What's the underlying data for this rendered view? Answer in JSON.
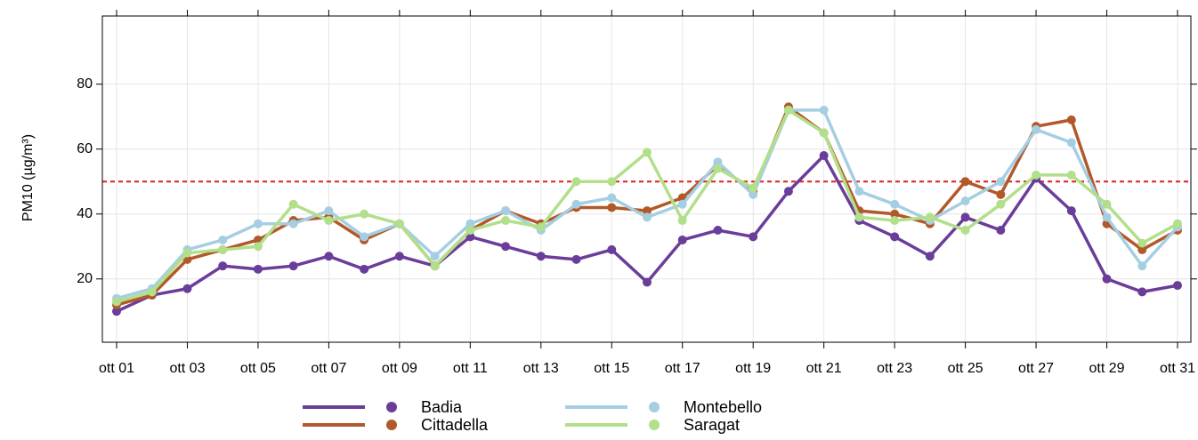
{
  "chart_data": {
    "type": "line",
    "y_label": "PM10 (µg/m³)",
    "categories": [
      "ott 01",
      null,
      "ott 03",
      null,
      "ott 05",
      null,
      "ott 07",
      null,
      "ott 09",
      null,
      "ott 11",
      null,
      "ott 13",
      null,
      "ott 15",
      null,
      "ott 17",
      null,
      "ott 19",
      null,
      "ott 21",
      null,
      "ott 23",
      null,
      "ott 25",
      null,
      "ott 27",
      null,
      "ott 29",
      null,
      "ott 31"
    ],
    "series": [
      {
        "name": "Badia",
        "color": "#6a3d9a",
        "values": [
          10,
          15,
          17,
          24,
          23,
          24,
          27,
          23,
          27,
          24,
          33,
          30,
          27,
          26,
          29,
          19,
          32,
          35,
          33,
          47,
          58,
          38,
          33,
          27,
          39,
          35,
          51,
          41,
          20,
          16,
          18
        ]
      },
      {
        "name": "Cittadella",
        "color": "#b15928",
        "values": [
          12,
          15,
          26,
          29,
          32,
          38,
          39,
          32,
          37,
          24,
          35,
          41,
          37,
          42,
          42,
          41,
          45,
          55,
          47,
          73,
          65,
          41,
          40,
          37,
          50,
          46,
          67,
          69,
          37,
          29,
          35
        ]
      },
      {
        "name": "Montebello",
        "color": "#a6cee3",
        "values": [
          14,
          17,
          29,
          32,
          37,
          37,
          41,
          33,
          37,
          27,
          37,
          41,
          35,
          43,
          45,
          39,
          43,
          56,
          46,
          72,
          72,
          47,
          43,
          38,
          44,
          50,
          66,
          62,
          39,
          24,
          36
        ]
      },
      {
        "name": "Saragat",
        "color": "#b2df8a",
        "values": [
          13,
          16,
          28,
          29,
          30,
          43,
          38,
          40,
          37,
          24,
          35,
          38,
          36,
          50,
          50,
          59,
          38,
          54,
          48,
          72,
          65,
          39,
          38,
          39,
          35,
          43,
          52,
          52,
          43,
          31,
          37
        ]
      }
    ],
    "ylim": [
      0.5,
      101
    ],
    "yticks": [
      20,
      40,
      60,
      80
    ],
    "grid": true,
    "reference_line": {
      "value": 50,
      "color": "#e41a1c"
    },
    "legend": "bottom"
  }
}
